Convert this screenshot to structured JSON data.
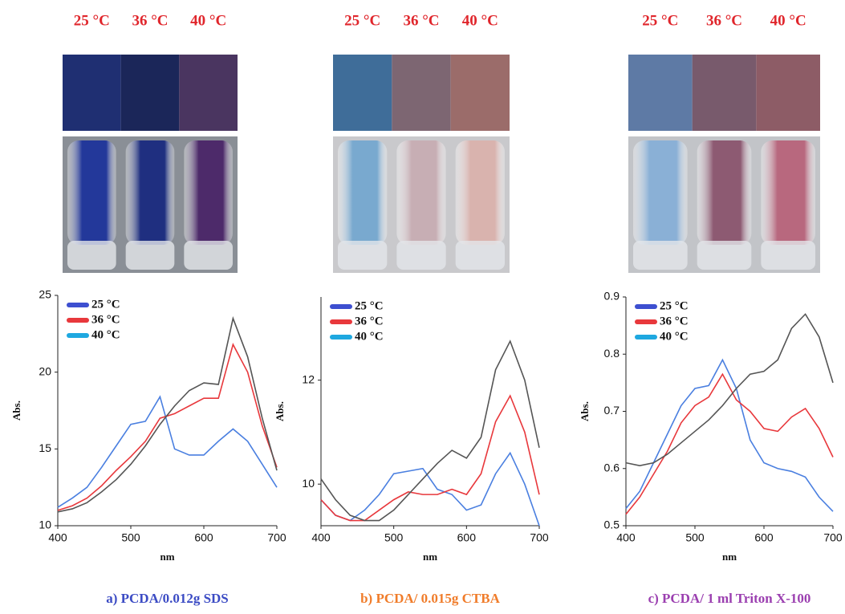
{
  "panels": [
    {
      "labels": [
        "25 °C",
        "36 °C",
        "40 °C"
      ]
    },
    {
      "labels": [
        "25 °C",
        "36 °C",
        "40 °C"
      ]
    },
    {
      "labels": [
        "25 °C",
        "36 °C",
        "40 °C"
      ]
    }
  ],
  "chart_data": [
    {
      "type": "line",
      "caption": "a) PCDA/0.012g SDS",
      "x_label": "nm",
      "y_label": "Abs.",
      "x": [
        400,
        420,
        440,
        460,
        480,
        500,
        520,
        540,
        560,
        580,
        600,
        620,
        640,
        660,
        680,
        700
      ],
      "xlim": [
        400,
        700
      ],
      "xticks": [
        400,
        500,
        600,
        700
      ],
      "ylim": [
        10,
        25
      ],
      "yticks": [
        10,
        15,
        20,
        25
      ],
      "series": [
        {
          "name": "25 °C",
          "color": "#4a7fe0",
          "legend_color": "#3d4fd0",
          "values": [
            11.2,
            11.8,
            12.5,
            13.8,
            15.2,
            16.6,
            16.8,
            18.4,
            15.0,
            14.6,
            14.6,
            15.5,
            16.3,
            15.5,
            14.0,
            12.5
          ]
        },
        {
          "name": "36 °C",
          "color": "#e8383c",
          "legend_color": "#e8383c",
          "values": [
            11.0,
            11.3,
            11.8,
            12.6,
            13.6,
            14.5,
            15.5,
            17.0,
            17.3,
            17.8,
            18.3,
            18.3,
            21.8,
            20.0,
            16.5,
            13.8
          ]
        },
        {
          "name": "40 °C",
          "color": "#555555",
          "legend_color": "#1ea8e0",
          "values": [
            10.9,
            11.1,
            11.5,
            12.2,
            13.0,
            14.0,
            15.2,
            16.6,
            17.8,
            18.8,
            19.3,
            19.2,
            23.5,
            21.0,
            17.0,
            13.6
          ]
        }
      ]
    },
    {
      "type": "line",
      "caption": "b) PCDA/ 0.015g CTBA",
      "x_label": "nm",
      "y_label": "Abs.",
      "x": [
        400,
        420,
        440,
        460,
        480,
        500,
        520,
        540,
        560,
        580,
        600,
        620,
        640,
        660,
        680,
        700
      ],
      "xlim": [
        400,
        700
      ],
      "xticks": [
        400,
        500,
        600,
        700
      ],
      "ylim": [
        9.2,
        13.6
      ],
      "yticks": [
        10,
        12
      ],
      "series": [
        {
          "name": "25 °C",
          "color": "#4a7fe0",
          "legend_color": "#3d4fd0",
          "values": [
            9.7,
            9.4,
            9.3,
            9.5,
            9.8,
            10.2,
            10.25,
            10.3,
            9.9,
            9.8,
            9.5,
            9.6,
            10.2,
            10.6,
            10.0,
            9.2
          ]
        },
        {
          "name": "36 °C",
          "color": "#e8383c",
          "legend_color": "#e8383c",
          "values": [
            9.7,
            9.4,
            9.3,
            9.3,
            9.5,
            9.7,
            9.85,
            9.8,
            9.8,
            9.9,
            9.8,
            10.2,
            11.2,
            11.7,
            11.0,
            9.8
          ]
        },
        {
          "name": "40 °C",
          "color": "#555555",
          "legend_color": "#1ea8e0",
          "values": [
            10.1,
            9.7,
            9.4,
            9.3,
            9.3,
            9.5,
            9.8,
            10.1,
            10.4,
            10.65,
            10.5,
            10.9,
            12.2,
            12.75,
            12.0,
            10.7
          ]
        }
      ]
    },
    {
      "type": "line",
      "caption": "c) PCDA/ 1 ml Triton X-100",
      "x_label": "nm",
      "y_label": "Abs.",
      "x": [
        400,
        420,
        440,
        460,
        480,
        500,
        520,
        540,
        560,
        580,
        600,
        620,
        640,
        660,
        680,
        700
      ],
      "xlim": [
        400,
        700
      ],
      "xticks": [
        400,
        500,
        600,
        700
      ],
      "ylim": [
        0.5,
        0.9
      ],
      "yticks": [
        0.5,
        0.6,
        0.7,
        0.8,
        0.9
      ],
      "series": [
        {
          "name": "25 °C",
          "color": "#4a7fe0",
          "legend_color": "#3d4fd0",
          "values": [
            0.53,
            0.56,
            0.61,
            0.66,
            0.71,
            0.74,
            0.745,
            0.79,
            0.74,
            0.65,
            0.61,
            0.6,
            0.595,
            0.585,
            0.55,
            0.525
          ]
        },
        {
          "name": "36 °C",
          "color": "#e8383c",
          "legend_color": "#e8383c",
          "values": [
            0.52,
            0.55,
            0.59,
            0.63,
            0.68,
            0.71,
            0.725,
            0.765,
            0.72,
            0.7,
            0.67,
            0.665,
            0.69,
            0.705,
            0.67,
            0.62
          ]
        },
        {
          "name": "40 °C",
          "color": "#555555",
          "legend_color": "#1ea8e0",
          "values": [
            0.61,
            0.605,
            0.61,
            0.625,
            0.645,
            0.665,
            0.685,
            0.71,
            0.74,
            0.765,
            0.77,
            0.79,
            0.845,
            0.87,
            0.83,
            0.75
          ]
        }
      ]
    }
  ]
}
